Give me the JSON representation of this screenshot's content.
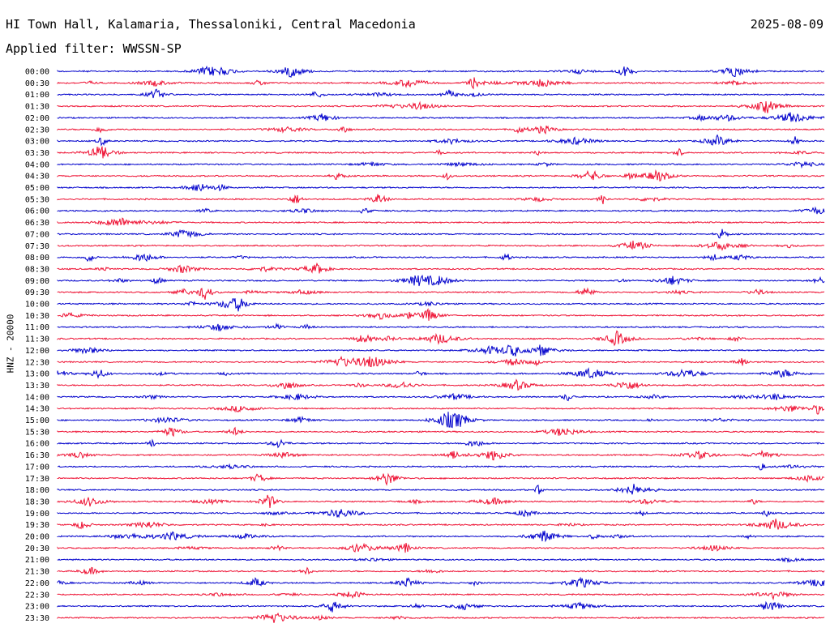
{
  "header": {
    "station": "HI Town Hall, Kalamaria, Thessaloniki, Central Macedonia",
    "date": "2025-08-09",
    "filter": "Applied filter: WWSSN-SP"
  },
  "chart_data": {
    "type": "line",
    "title": "HI Town Hall, Kalamaria, Thessaloniki, Central Macedonia",
    "ylabel": "HNZ - 20000",
    "xlabel": "",
    "row_labels": [
      "00:00",
      "00:30",
      "01:00",
      "01:30",
      "02:00",
      "02:30",
      "03:00",
      "03:30",
      "04:00",
      "04:30",
      "05:00",
      "05:30",
      "06:00",
      "06:30",
      "07:00",
      "07:30",
      "08:00",
      "08:30",
      "09:00",
      "09:30",
      "10:00",
      "10:30",
      "11:00",
      "11:30",
      "12:00",
      "12:30",
      "13:00",
      "13:30",
      "14:00",
      "14:30",
      "15:00",
      "15:30",
      "16:00",
      "16:30",
      "17:00",
      "17:30",
      "18:00",
      "18:30",
      "19:00",
      "19:30",
      "20:00",
      "20:30",
      "21:00",
      "21:30",
      "22:00",
      "22:30",
      "23:00",
      "23:30"
    ],
    "series_colors": [
      "#0000cc",
      "#ee1133"
    ],
    "grid": false
  }
}
